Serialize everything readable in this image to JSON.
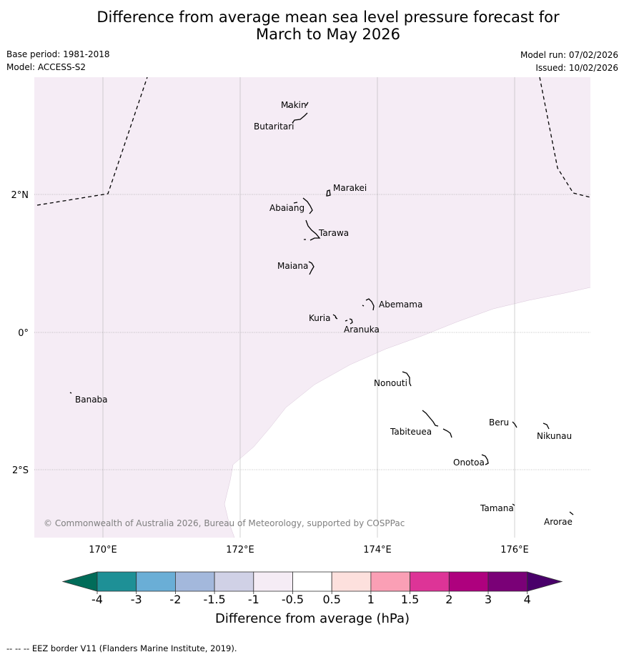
{
  "header": {
    "title_line1": "Difference from average mean sea level pressure forecast for",
    "title_line2": "March to May 2026",
    "base_period": "Base period: 1981-2018",
    "model": "Model: ACCESS-S2",
    "model_run": "Model run: 07/02/2026",
    "issued": "Issued: 10/02/2026"
  },
  "map": {
    "extent": {
      "lon": [
        169.0,
        177.1
      ],
      "lat": [
        -3.0,
        3.7
      ]
    },
    "lat_labels": [
      "2°N",
      "0°",
      "2°S"
    ],
    "lon_labels": [
      "170°E",
      "172°E",
      "174°E",
      "176°E"
    ],
    "fill_color_main": "#f5ecf5",
    "fill_color_outside": "#ffffff",
    "islands": [
      "Makin",
      "Butaritari",
      "Marakei",
      "Abaiang",
      "Tarawa",
      "Maiana",
      "Abemama",
      "Kuria",
      "Aranuka",
      "Nonouti",
      "Banaba",
      "Tabiteuea",
      "Beru",
      "Nikunau",
      "Onotoa",
      "Tamana",
      "Arorae"
    ],
    "copyright": "© Commonwealth of Australia 2026, Bureau of Meteorology, supported by COSPPac"
  },
  "colorbar": {
    "labels": [
      "-4",
      "-3",
      "-2",
      "-1.5",
      "-1",
      "-0.5",
      "0.5",
      "1",
      "1.5",
      "2",
      "3",
      "4"
    ],
    "colors": [
      "#1e9096",
      "#6aaed6",
      "#a3b8dc",
      "#d0d1e6",
      "#f5ecf5",
      "#ffffff",
      "#fde0dd",
      "#fa9fb5",
      "#dd3497",
      "#ae017e",
      "#7a0177"
    ],
    "under_color": "#016c59",
    "over_color": "#49006a",
    "label": "Difference from average (hPa)"
  },
  "footer": {
    "eez_note": "--  --  -- EEZ border V11 (Flanders Marine Institute, 2019)."
  }
}
